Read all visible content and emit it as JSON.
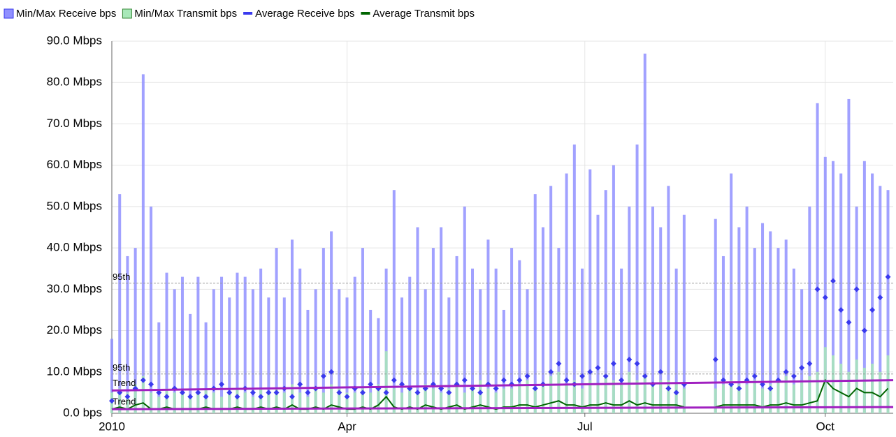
{
  "chart_data": {
    "type": "bar",
    "x": [
      0,
      3,
      6,
      9,
      12,
      15,
      18,
      21,
      24,
      27,
      30,
      33,
      36,
      39,
      42,
      45,
      48,
      51,
      54,
      57,
      60,
      63,
      66,
      69,
      72,
      75,
      78,
      81,
      84,
      87,
      90,
      93,
      96,
      99,
      102,
      105,
      108,
      111,
      114,
      117,
      120,
      123,
      126,
      129,
      132,
      135,
      138,
      141,
      144,
      147,
      150,
      153,
      156,
      159,
      162,
      165,
      168,
      171,
      174,
      177,
      180,
      183,
      186,
      189,
      192,
      195,
      198,
      201,
      204,
      207,
      210,
      213,
      216,
      219,
      222,
      225,
      228,
      231,
      234,
      237,
      240,
      243,
      246,
      249,
      252,
      255,
      258,
      261,
      264,
      267,
      270,
      273,
      276,
      279,
      282,
      285,
      288,
      291,
      294,
      297
    ],
    "series": [
      {
        "name": "Min/Max Receive bps",
        "color": "#9090ff",
        "mark": "bar",
        "values": [
          18,
          53,
          38,
          40,
          82,
          50,
          22,
          34,
          30,
          33,
          24,
          33,
          22,
          30,
          33,
          28,
          34,
          33,
          30,
          35,
          28,
          40,
          28,
          42,
          35,
          25,
          30,
          40,
          44,
          30,
          28,
          33,
          40,
          25,
          23,
          35,
          54,
          28,
          33,
          45,
          30,
          40,
          45,
          28,
          38,
          50,
          35,
          30,
          42,
          35,
          25,
          40,
          37,
          30,
          53,
          45,
          55,
          40,
          58,
          65,
          35,
          59,
          48,
          54,
          60,
          35,
          50,
          65,
          87,
          50,
          45,
          55,
          35,
          48,
          null,
          null,
          null,
          47,
          38,
          58,
          45,
          50,
          40,
          46,
          44,
          40,
          42,
          35,
          30,
          50,
          75,
          62,
          61,
          58,
          76,
          50,
          61,
          58,
          55,
          54
        ]
      },
      {
        "name": "Min/Max Transmit bps",
        "color": "#a8e8b8",
        "mark": "bar",
        "values": [
          5,
          6,
          5,
          7,
          9,
          5,
          4,
          6,
          5,
          5,
          4,
          5,
          6,
          5,
          4,
          5,
          6,
          5,
          4,
          6,
          5,
          6,
          5,
          7,
          5,
          4,
          6,
          5,
          7,
          6,
          5,
          5,
          6,
          5,
          7,
          15,
          6,
          5,
          6,
          5,
          7,
          6,
          5,
          6,
          7,
          5,
          6,
          8,
          6,
          5,
          6,
          6,
          7,
          8,
          6,
          7,
          9,
          10,
          7,
          8,
          6,
          8,
          7,
          9,
          8,
          7,
          10,
          8,
          9,
          7,
          8,
          8,
          7,
          6,
          null,
          null,
          null,
          6,
          7,
          8,
          7,
          7,
          8,
          6,
          7,
          8,
          9,
          7,
          8,
          9,
          10,
          16,
          14,
          12,
          10,
          13,
          11,
          12,
          10,
          14
        ]
      },
      {
        "name": "Average Receive bps",
        "color": "#3a3aee",
        "mark": "diamond",
        "values": [
          3,
          5,
          4,
          6,
          8,
          7,
          5,
          4,
          6,
          5,
          4,
          5,
          4,
          6,
          7,
          5,
          4,
          6,
          5,
          4,
          5,
          5,
          6,
          4,
          7,
          5,
          6,
          9,
          10,
          5,
          4,
          6,
          5,
          7,
          6,
          5,
          8,
          7,
          6,
          5,
          6,
          7,
          6,
          5,
          7,
          8,
          6,
          5,
          7,
          6,
          8,
          7,
          8,
          9,
          6,
          7,
          10,
          12,
          8,
          7,
          9,
          10,
          11,
          9,
          12,
          8,
          13,
          12,
          9,
          7,
          10,
          6,
          5,
          7,
          null,
          null,
          null,
          13,
          8,
          7,
          6,
          8,
          9,
          7,
          6,
          8,
          10,
          9,
          11,
          12,
          30,
          28,
          32,
          25,
          22,
          30,
          20,
          25,
          28,
          33
        ]
      },
      {
        "name": "Average Transmit bps",
        "color": "#006400",
        "mark": "line",
        "values": [
          1,
          1.5,
          1,
          2,
          2.5,
          1,
          1,
          1.5,
          1,
          1,
          1,
          1,
          1.5,
          1,
          1,
          1,
          1.5,
          1,
          1,
          1.5,
          1,
          1.5,
          1,
          2,
          1,
          1,
          1.5,
          1,
          2,
          1.5,
          1,
          1,
          1.5,
          1,
          2,
          4,
          1.5,
          1,
          1.5,
          1,
          2,
          1.5,
          1,
          1.5,
          2,
          1,
          1.5,
          2,
          1.5,
          1,
          1.5,
          1.5,
          2,
          2,
          1.5,
          2,
          2.5,
          3,
          2,
          2,
          1.5,
          2,
          2,
          2.5,
          2,
          2,
          3,
          2,
          2.5,
          2,
          2,
          2,
          2,
          1.5,
          null,
          null,
          null,
          1.5,
          2,
          2,
          2,
          2,
          2,
          1.5,
          2,
          2,
          2.5,
          2,
          2,
          2.5,
          3,
          8,
          6,
          5,
          4,
          6,
          5,
          5,
          4,
          6
        ]
      }
    ],
    "xlim": [
      0,
      299
    ],
    "xticks": [
      {
        "value": 0,
        "label": "2010"
      },
      {
        "value": 90,
        "label": "Apr"
      },
      {
        "value": 181,
        "label": "Jul"
      },
      {
        "value": 273,
        "label": "Oct"
      }
    ],
    "ylim": [
      0,
      90
    ],
    "yticks": [
      {
        "value": 0,
        "label": "0.0 bps"
      },
      {
        "value": 10,
        "label": "10.0 Mbps"
      },
      {
        "value": 20,
        "label": "20.0 Mbps"
      },
      {
        "value": 30,
        "label": "30.0 Mbps"
      },
      {
        "value": 40,
        "label": "40.0 Mbps"
      },
      {
        "value": 50,
        "label": "50.0 Mbps"
      },
      {
        "value": 60,
        "label": "60.0 Mbps"
      },
      {
        "value": 70,
        "label": "70.0 Mbps"
      },
      {
        "value": 80,
        "label": "80.0 Mbps"
      },
      {
        "value": 90,
        "label": "90.0 Mbps"
      }
    ],
    "grid": true,
    "reference_lines": [
      {
        "label": "95th",
        "value": 31.5,
        "color": "#999999"
      },
      {
        "label": "95th",
        "value": 9.5,
        "color": "#999999"
      }
    ],
    "trend_lines": [
      {
        "label": "Trend",
        "values": [
          5.5,
          8
        ],
        "color": "#a020c0"
      },
      {
        "label": "Trend",
        "values": [
          1,
          1.5
        ],
        "color": "#a020c0"
      }
    ]
  }
}
